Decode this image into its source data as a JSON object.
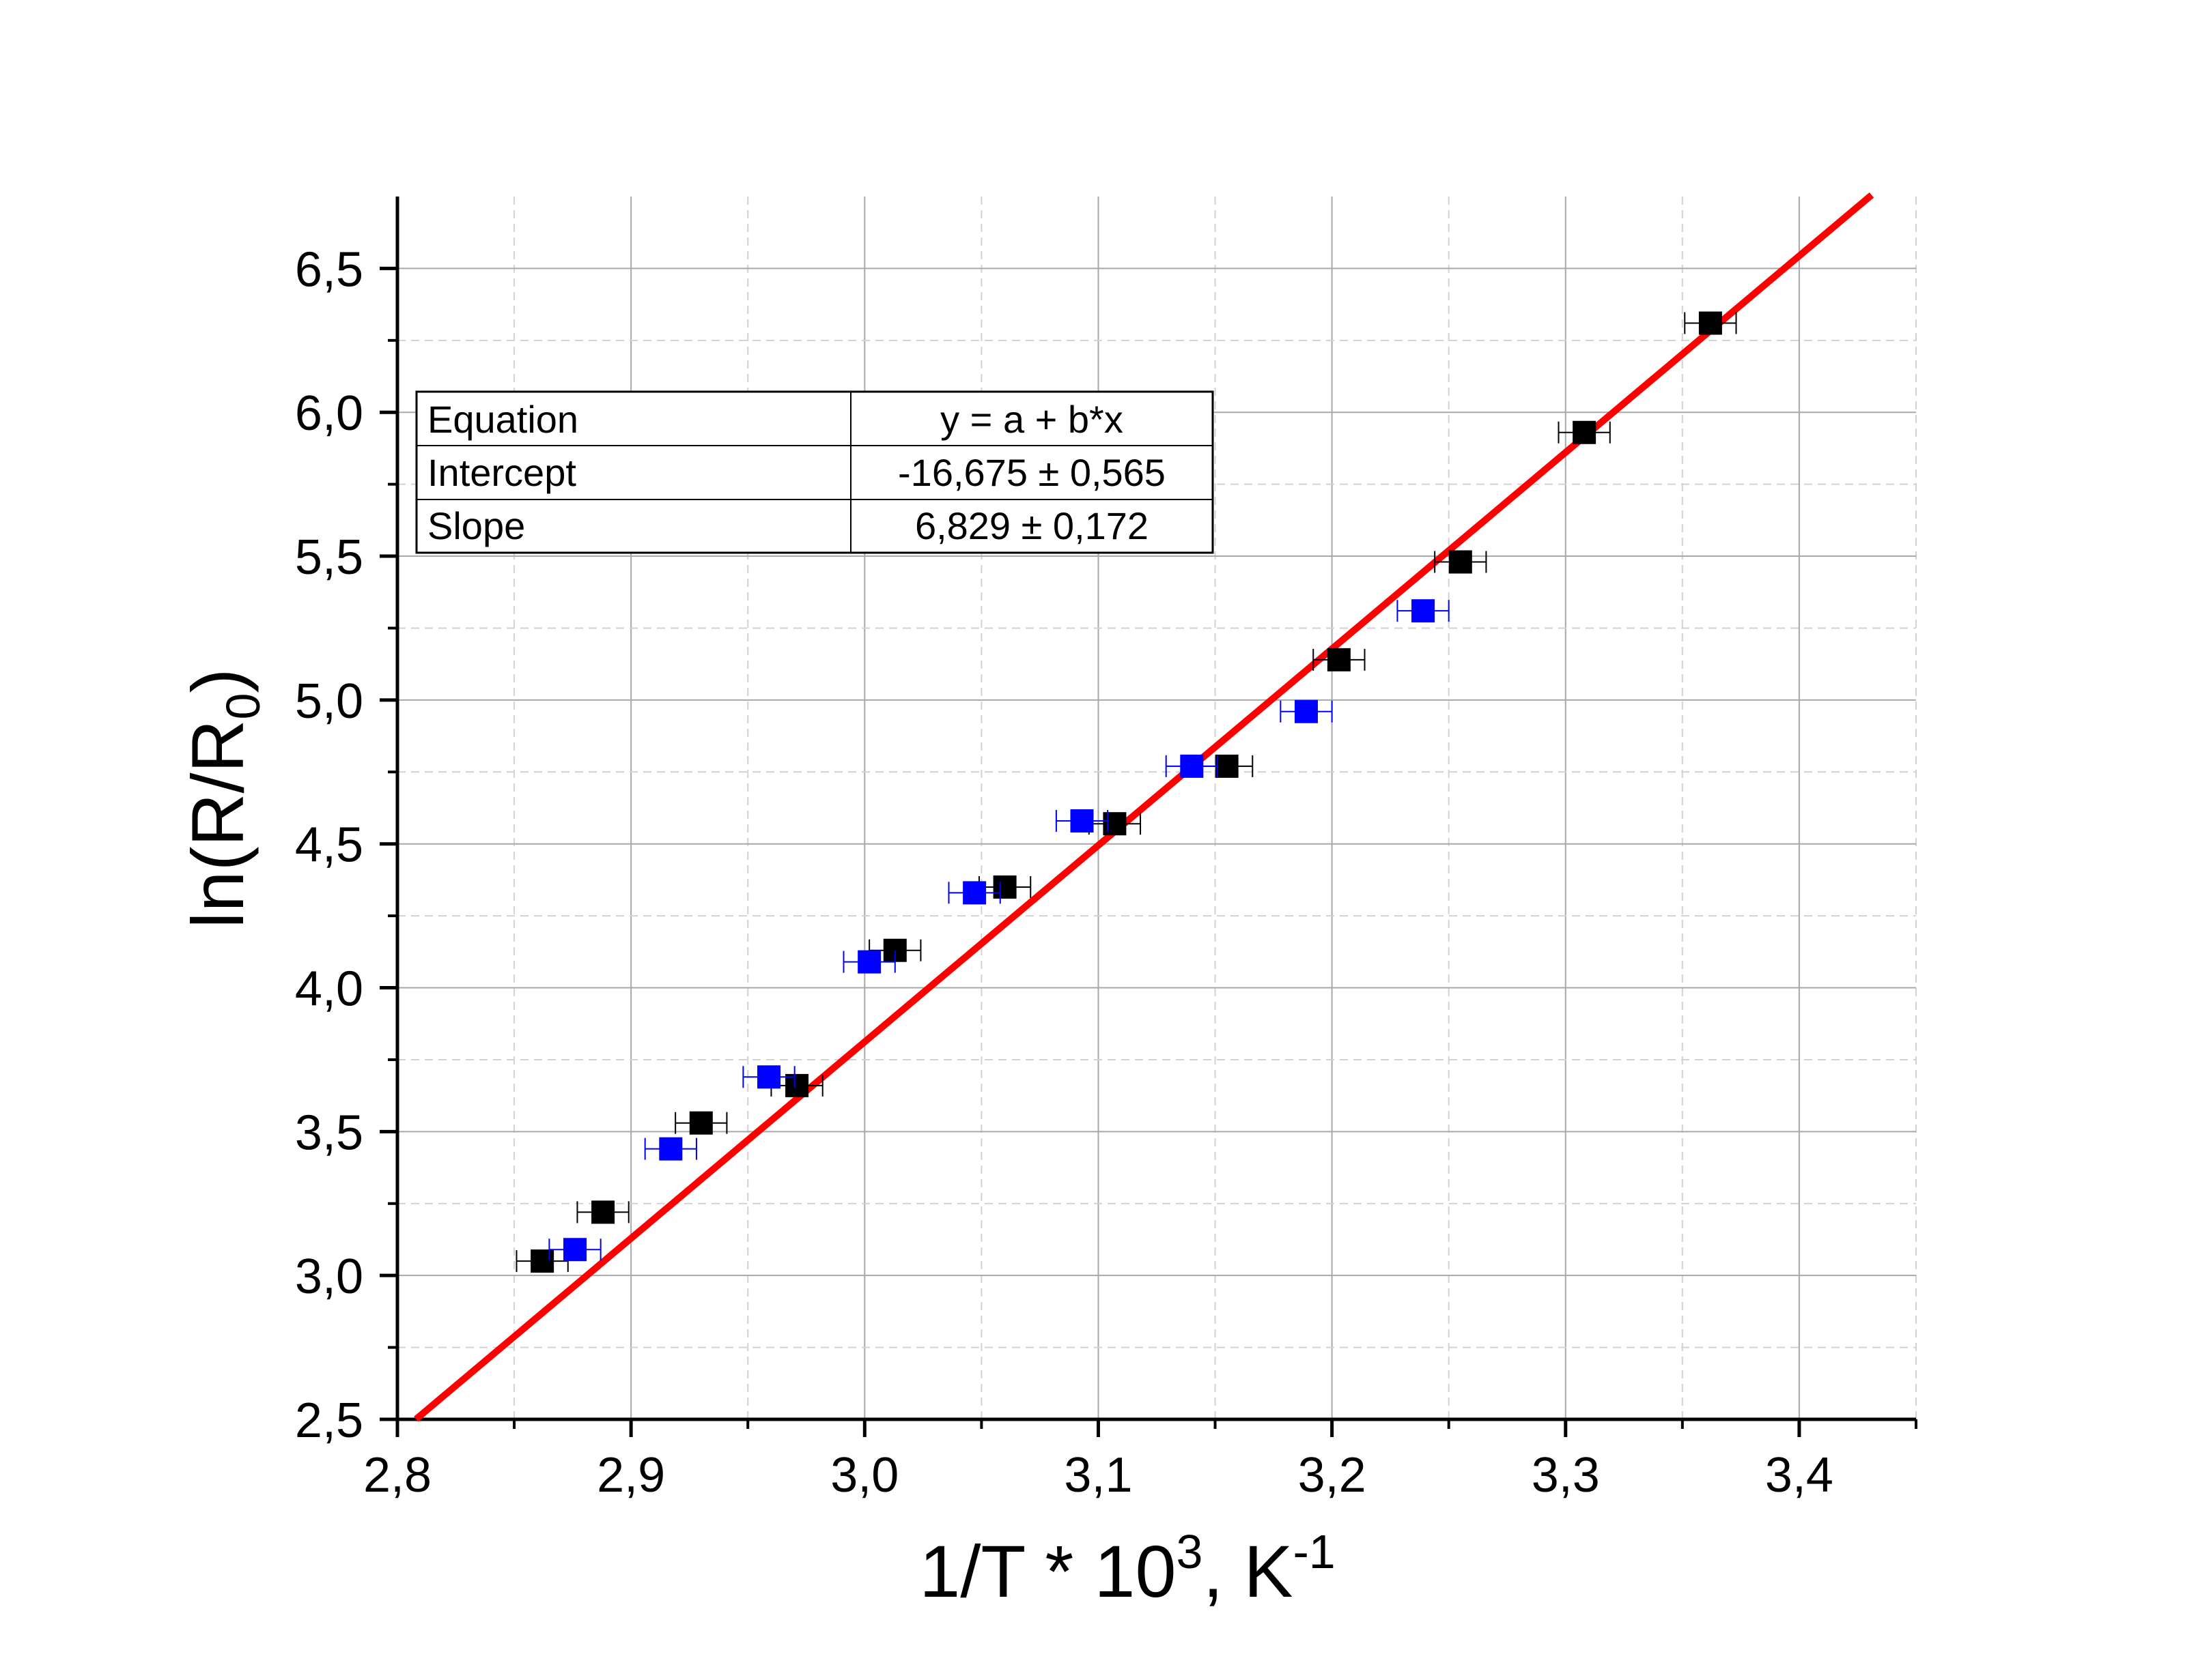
{
  "chart_data": {
    "type": "scatter",
    "xlabel_main": "1/T * 10",
    "xlabel_sup": "3",
    "xlabel_unit": ", K",
    "xlabel_unit_sup": "-1",
    "ylabel_main": "ln(R/R",
    "ylabel_sub": "0",
    "ylabel_end": ")",
    "xlim": [
      2.8,
      3.45
    ],
    "ylim": [
      2.5,
      6.75
    ],
    "x_ticks": [
      2.8,
      2.9,
      3.0,
      3.1,
      3.2,
      3.3,
      3.4
    ],
    "x_tick_labels": [
      "2,8",
      "2,9",
      "3,0",
      "3,1",
      "3,2",
      "3,3",
      "3,4"
    ],
    "y_ticks": [
      2.5,
      3.0,
      3.5,
      4.0,
      4.5,
      5.0,
      5.5,
      6.0,
      6.5
    ],
    "y_tick_labels": [
      "2,5",
      "3,0",
      "3,5",
      "4,0",
      "4,5",
      "5,0",
      "5,5",
      "6,0",
      "6,5"
    ],
    "grid": true,
    "x_error": 0.011,
    "series": [
      {
        "color": "#000000",
        "marker": "square",
        "points": [
          {
            "x": 2.862,
            "y": 3.05
          },
          {
            "x": 2.888,
            "y": 3.22
          },
          {
            "x": 2.93,
            "y": 3.53
          },
          {
            "x": 2.971,
            "y": 3.66
          },
          {
            "x": 3.013,
            "y": 4.13
          },
          {
            "x": 3.06,
            "y": 4.35
          },
          {
            "x": 3.107,
            "y": 4.57
          },
          {
            "x": 3.155,
            "y": 4.77
          },
          {
            "x": 3.203,
            "y": 5.14
          },
          {
            "x": 3.255,
            "y": 5.48
          },
          {
            "x": 3.308,
            "y": 5.93
          },
          {
            "x": 3.362,
            "y": 6.31
          }
        ]
      },
      {
        "color": "#0000ff",
        "marker": "square",
        "points": [
          {
            "x": 2.876,
            "y": 3.09
          },
          {
            "x": 2.917,
            "y": 3.44
          },
          {
            "x": 2.959,
            "y": 3.69
          },
          {
            "x": 3.002,
            "y": 4.09
          },
          {
            "x": 3.047,
            "y": 4.33
          },
          {
            "x": 3.093,
            "y": 4.58
          },
          {
            "x": 3.14,
            "y": 4.77
          },
          {
            "x": 3.189,
            "y": 4.96
          },
          {
            "x": 3.239,
            "y": 5.31
          }
        ]
      }
    ],
    "fit": {
      "color": "#ff0000",
      "intercept": -16.675,
      "slope": 6.829,
      "x_range": [
        2.808,
        3.431
      ]
    },
    "fit_table": {
      "rows": [
        {
          "label": "Equation",
          "value": "y = a + b*x"
        },
        {
          "label": "Intercept",
          "value": "-16,675 ± 0,565"
        },
        {
          "label": "Slope",
          "value": "6,829 ± 0,172"
        }
      ]
    }
  }
}
